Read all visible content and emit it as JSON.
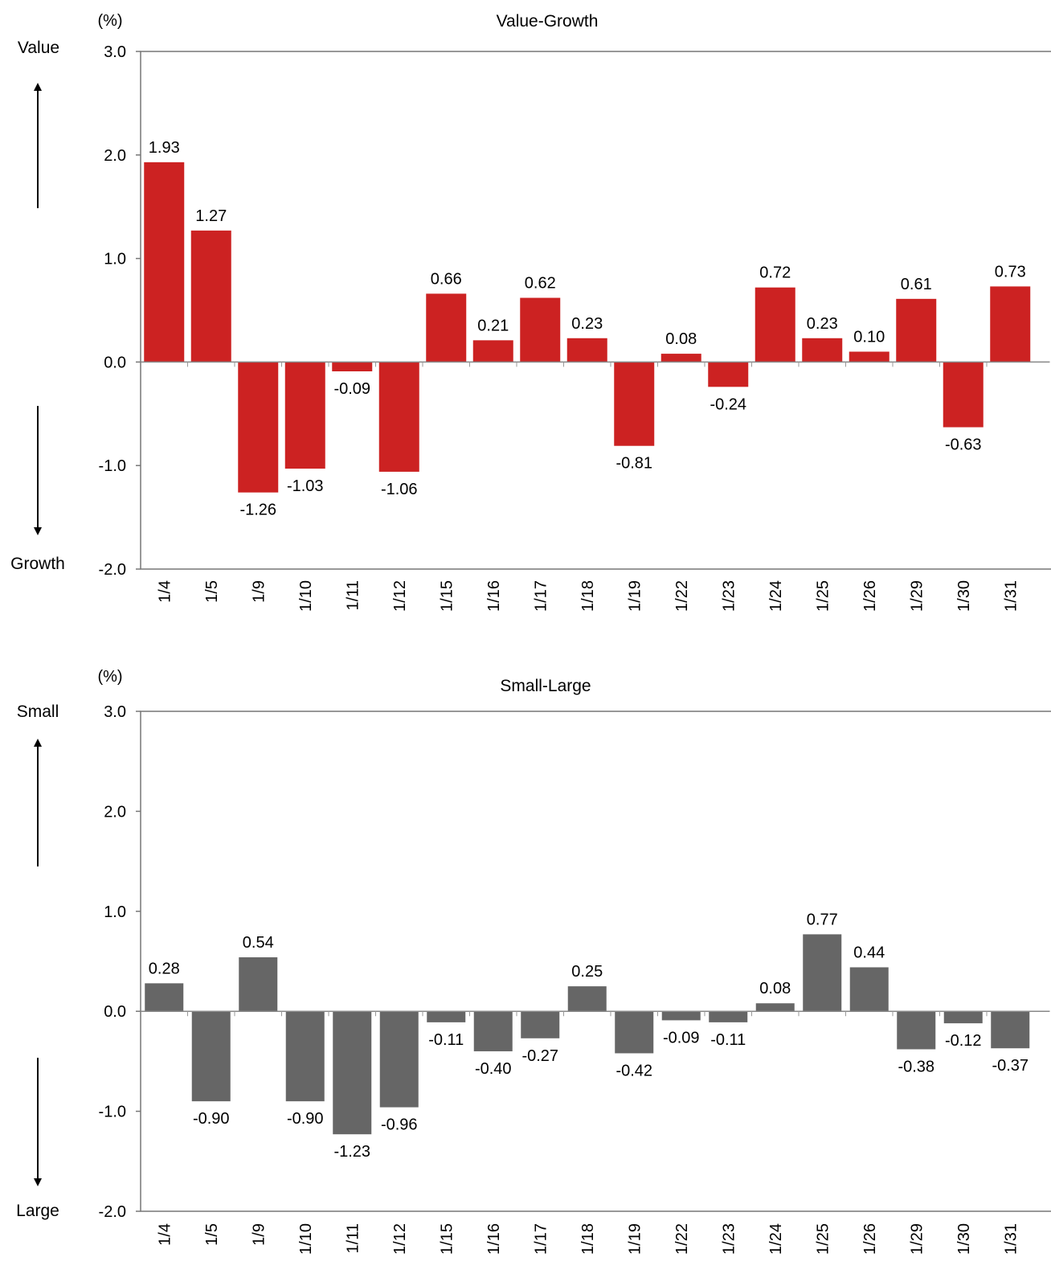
{
  "chart_data": [
    {
      "type": "bar",
      "title": "Value-Growth",
      "ylabel": "(%)",
      "top_label": "Value",
      "bottom_label": "Growth",
      "ylim": [
        -2.0,
        3.0
      ],
      "yticks": [
        "3.0",
        "2.0",
        "1.0",
        "0.0",
        "-1.0",
        "-2.0"
      ],
      "ytick_values": [
        3.0,
        2.0,
        1.0,
        0.0,
        -1.0,
        -2.0
      ],
      "bar_color": "#cc2222",
      "categories": [
        "1/4",
        "1/5",
        "1/9",
        "1/10",
        "1/11",
        "1/12",
        "1/15",
        "1/16",
        "1/17",
        "1/18",
        "1/19",
        "1/22",
        "1/23",
        "1/24",
        "1/25",
        "1/26",
        "1/29",
        "1/30",
        "1/31"
      ],
      "values": [
        1.93,
        1.27,
        -1.26,
        -1.03,
        -0.09,
        -1.06,
        0.66,
        0.21,
        0.62,
        0.23,
        -0.81,
        0.08,
        -0.24,
        0.72,
        0.23,
        0.1,
        0.61,
        -0.63,
        0.73
      ],
      "value_labels": [
        "1.93",
        "1.27",
        "-1.26",
        "-1.03",
        "-0.09",
        "-1.06",
        "0.66",
        "0.21",
        "0.62",
        "0.23",
        "-0.81",
        "0.08",
        "-0.24",
        "0.72",
        "0.23",
        "0.10",
        "0.61",
        "-0.63",
        "0.73"
      ]
    },
    {
      "type": "bar",
      "title": "Small-Large",
      "ylabel": "(%)",
      "top_label": "Small",
      "bottom_label": "Large",
      "ylim": [
        -2.0,
        3.0
      ],
      "yticks": [
        "3.0",
        "2.0",
        "1.0",
        "0.0",
        "-1.0",
        "-2.0"
      ],
      "ytick_values": [
        3.0,
        2.0,
        1.0,
        0.0,
        -1.0,
        -2.0
      ],
      "bar_color": "#666666",
      "categories": [
        "1/4",
        "1/5",
        "1/9",
        "1/10",
        "1/11",
        "1/12",
        "1/15",
        "1/16",
        "1/17",
        "1/18",
        "1/19",
        "1/22",
        "1/23",
        "1/24",
        "1/25",
        "1/26",
        "1/29",
        "1/30",
        "1/31"
      ],
      "values": [
        0.28,
        -0.9,
        0.54,
        -0.9,
        -1.23,
        -0.96,
        -0.11,
        -0.4,
        -0.27,
        0.25,
        -0.42,
        -0.09,
        -0.11,
        0.08,
        0.77,
        0.44,
        -0.38,
        -0.12,
        -0.37
      ],
      "value_labels": [
        "0.28",
        "-0.90",
        "0.54",
        "-0.90",
        "-1.23",
        "-0.96",
        "-0.11",
        "-0.40",
        "-0.27",
        "0.25",
        "-0.42",
        "-0.09",
        "-0.11",
        "0.08",
        "0.77",
        "0.44",
        "-0.38",
        "-0.12",
        "-0.37"
      ]
    }
  ]
}
